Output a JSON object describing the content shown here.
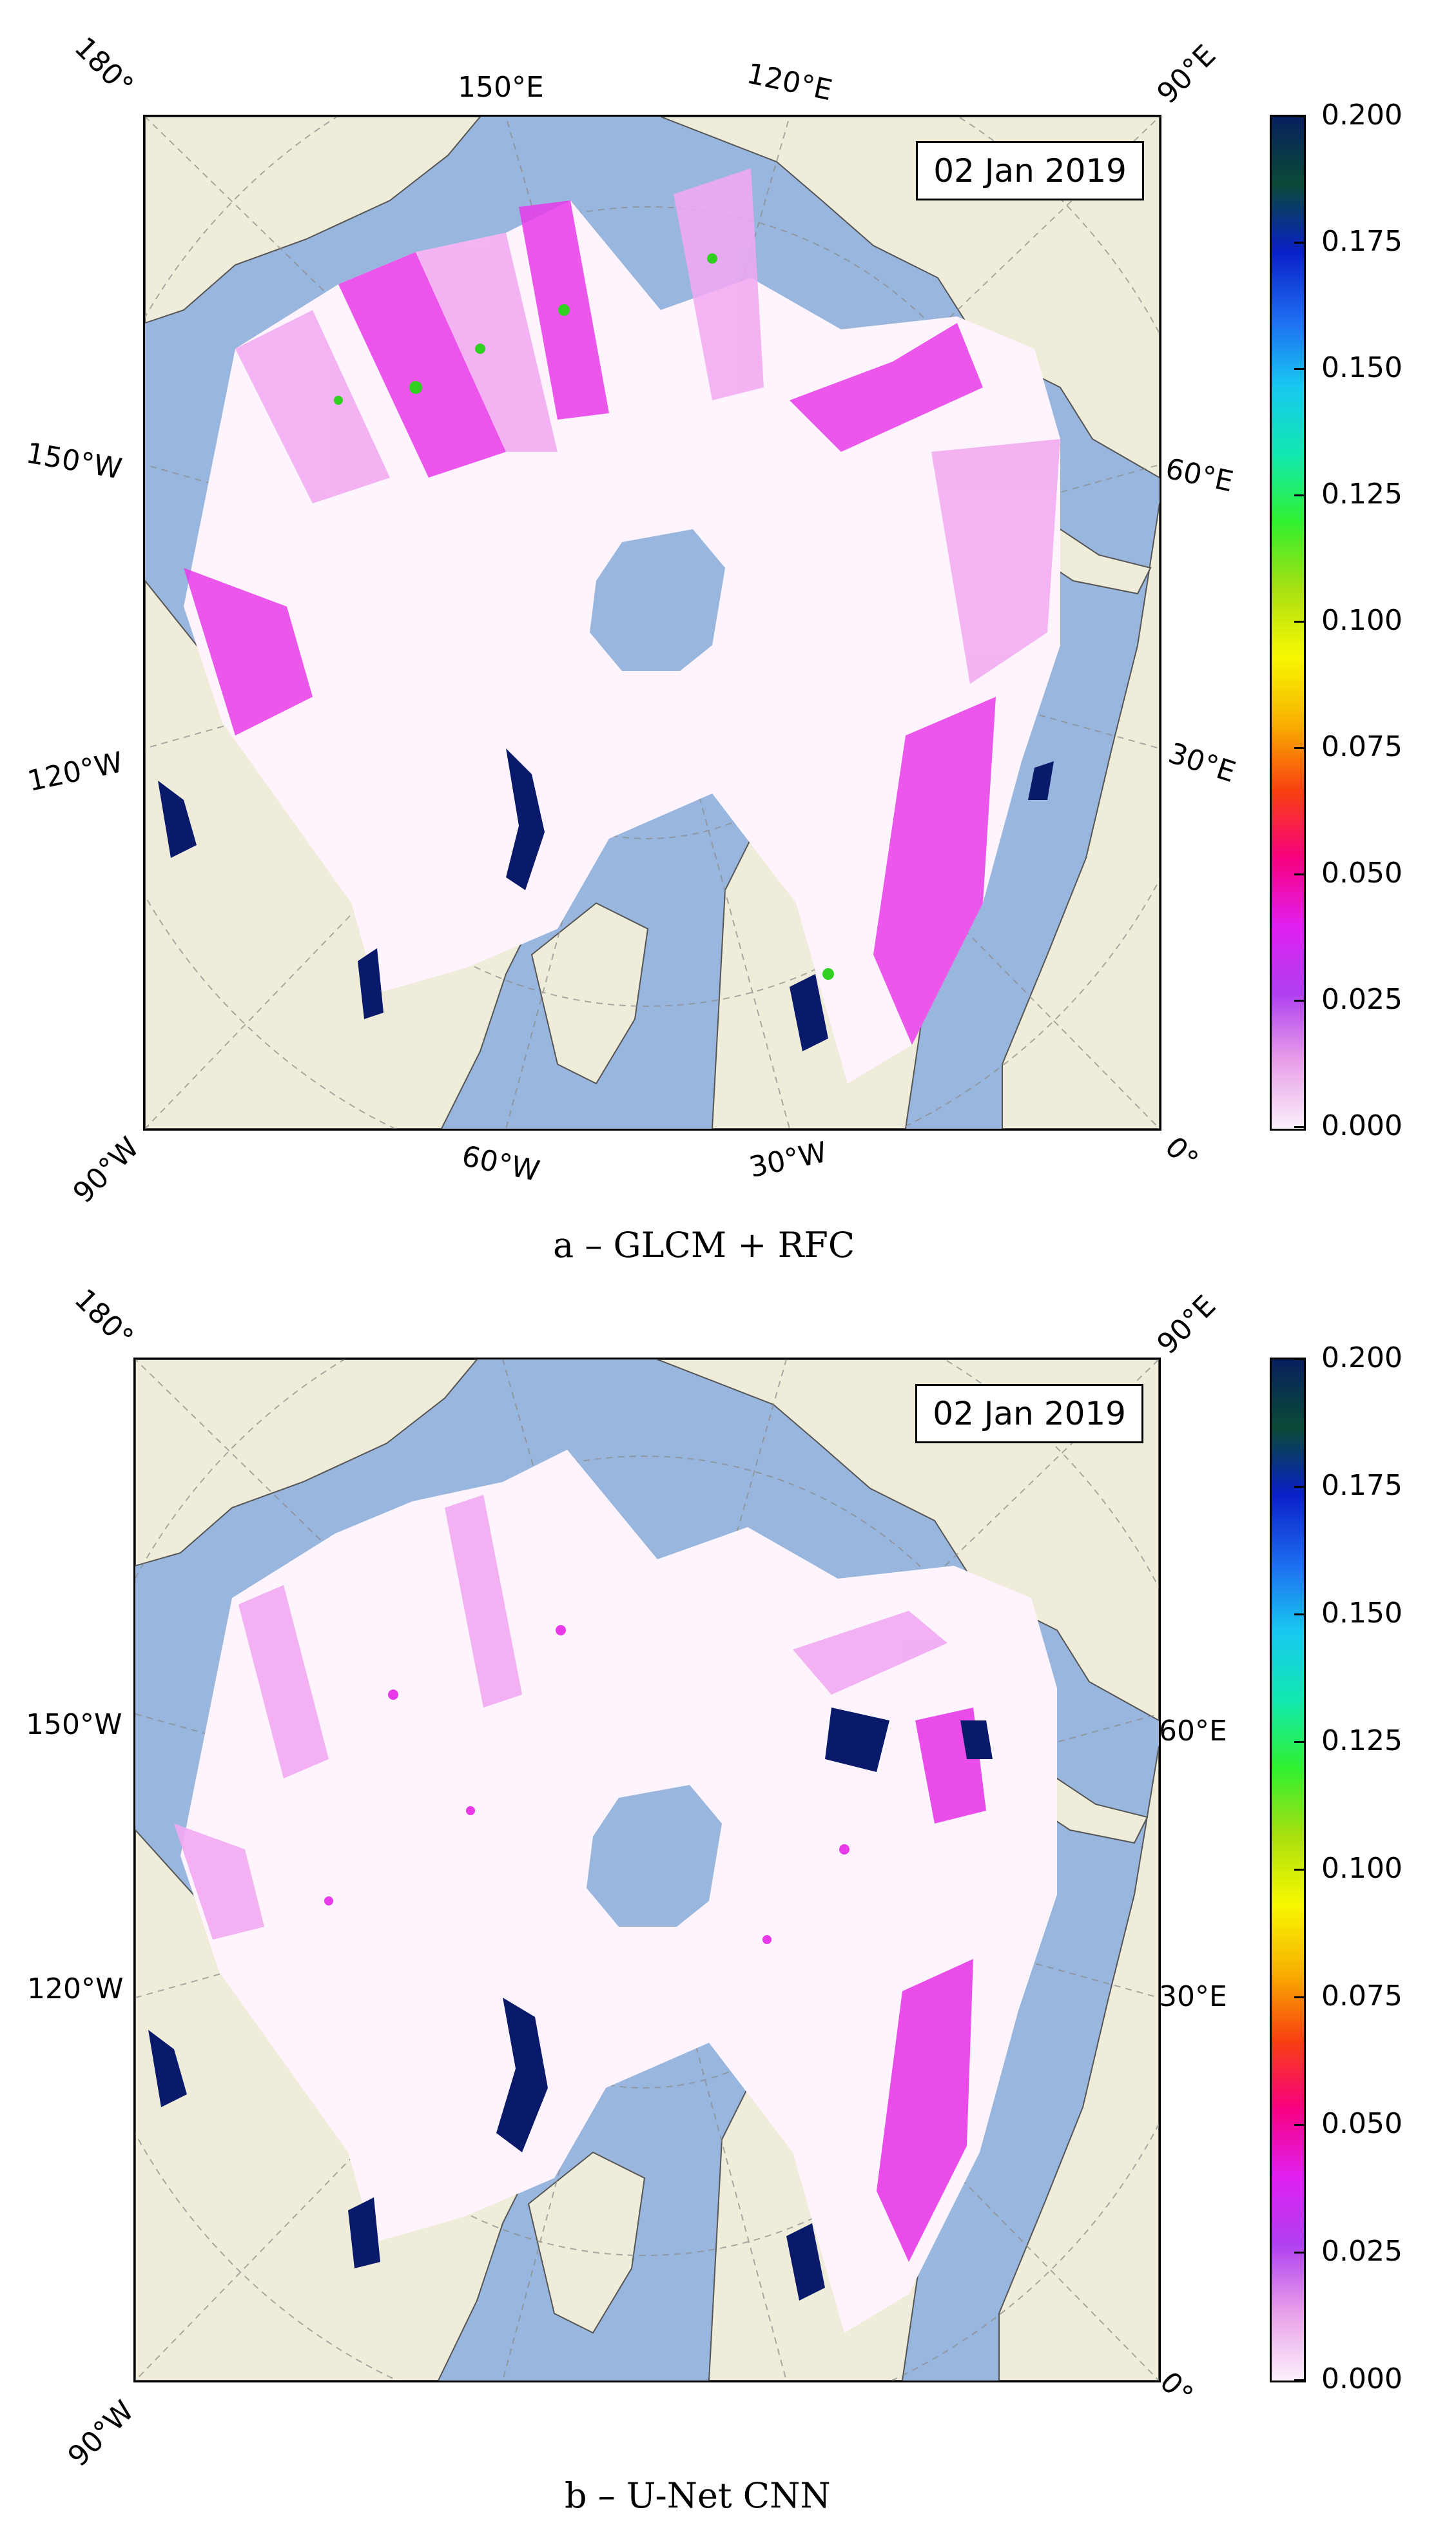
{
  "panels": [
    {
      "date": "02 Jan 2019",
      "caption": "a – GLCM + RFC",
      "lon_labels": {
        "l180": "180°",
        "l150e": "150°E",
        "l120e": "120°E",
        "l90e": "90°E",
        "l150w": "150°W",
        "l60e": "60°E",
        "l120w": "120°W",
        "l30e": "30°E",
        "l90w": "90°W",
        "l60w": "60°W",
        "l30w": "30°W",
        "l0": "0°"
      }
    },
    {
      "date": "02 Jan 2019",
      "caption": "b – U-Net CNN",
      "lon_labels": {
        "l180": "180°",
        "l90e": "90°E",
        "l150w": "150°W",
        "l60e": "60°E",
        "l120w": "120°W",
        "l30e": "30°E",
        "l90w": "90°W",
        "l0": "0°"
      }
    }
  ],
  "colorbar": {
    "ticks": [
      "0.200",
      "0.175",
      "0.150",
      "0.125",
      "0.100",
      "0.075",
      "0.050",
      "0.025",
      "0.000"
    ],
    "colors": [
      "#08205e",
      "#0a4a36",
      "#0a20c8",
      "#1e6cf0",
      "#18c8f0",
      "#10e8b0",
      "#30f030",
      "#a8e010",
      "#f8f800",
      "#f8b000",
      "#f84010",
      "#f80080",
      "#e020f0",
      "#b040f0",
      "#e8a0e8",
      "#fcf0fc"
    ],
    "range": [
      0.0,
      0.2
    ]
  },
  "colors": {
    "ocean": "#99b6de",
    "land": "#efecd9",
    "ice_low": "#fdf4fd",
    "magenta": "#e83ae8",
    "pink": "#f2a8f2",
    "navy": "#0a1a6a"
  }
}
